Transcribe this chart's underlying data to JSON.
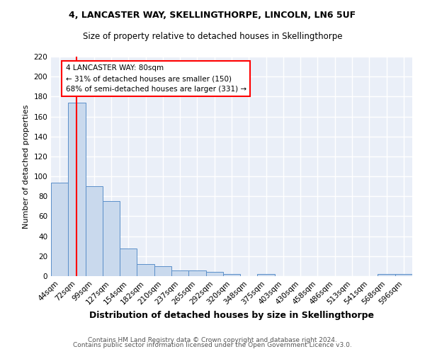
{
  "title1": "4, LANCASTER WAY, SKELLINGTHORPE, LINCOLN, LN6 5UF",
  "title2": "Size of property relative to detached houses in Skellingthorpe",
  "xlabel": "Distribution of detached houses by size in Skellingthorpe",
  "ylabel": "Number of detached properties",
  "categories": [
    "44sqm",
    "72sqm",
    "99sqm",
    "127sqm",
    "154sqm",
    "182sqm",
    "210sqm",
    "237sqm",
    "265sqm",
    "292sqm",
    "320sqm",
    "348sqm",
    "375sqm",
    "403sqm",
    "430sqm",
    "458sqm",
    "486sqm",
    "513sqm",
    "541sqm",
    "568sqm",
    "596sqm"
  ],
  "values": [
    94,
    174,
    90,
    75,
    28,
    12,
    10,
    6,
    6,
    4,
    2,
    0,
    2,
    0,
    0,
    0,
    0,
    0,
    0,
    2,
    2
  ],
  "bar_color": "#c9d9ed",
  "bar_edge_color": "#5b8fc9",
  "red_line_index": 1,
  "annotation_text": "4 LANCASTER WAY: 80sqm\n← 31% of detached houses are smaller (150)\n68% of semi-detached houses are larger (331) →",
  "annotation_box_color": "white",
  "annotation_box_edge_color": "red",
  "footnote1": "Contains HM Land Registry data © Crown copyright and database right 2024.",
  "footnote2": "Contains public sector information licensed under the Open Government Licence v3.0.",
  "ylim": [
    0,
    220
  ],
  "yticks": [
    0,
    20,
    40,
    60,
    80,
    100,
    120,
    140,
    160,
    180,
    200,
    220
  ],
  "background_color": "#eaeff8",
  "grid_color": "white",
  "title1_fontsize": 9,
  "title2_fontsize": 8.5,
  "xlabel_fontsize": 9,
  "ylabel_fontsize": 8,
  "tick_fontsize": 7.5,
  "annotation_fontsize": 7.5,
  "footnote_fontsize": 6.5
}
